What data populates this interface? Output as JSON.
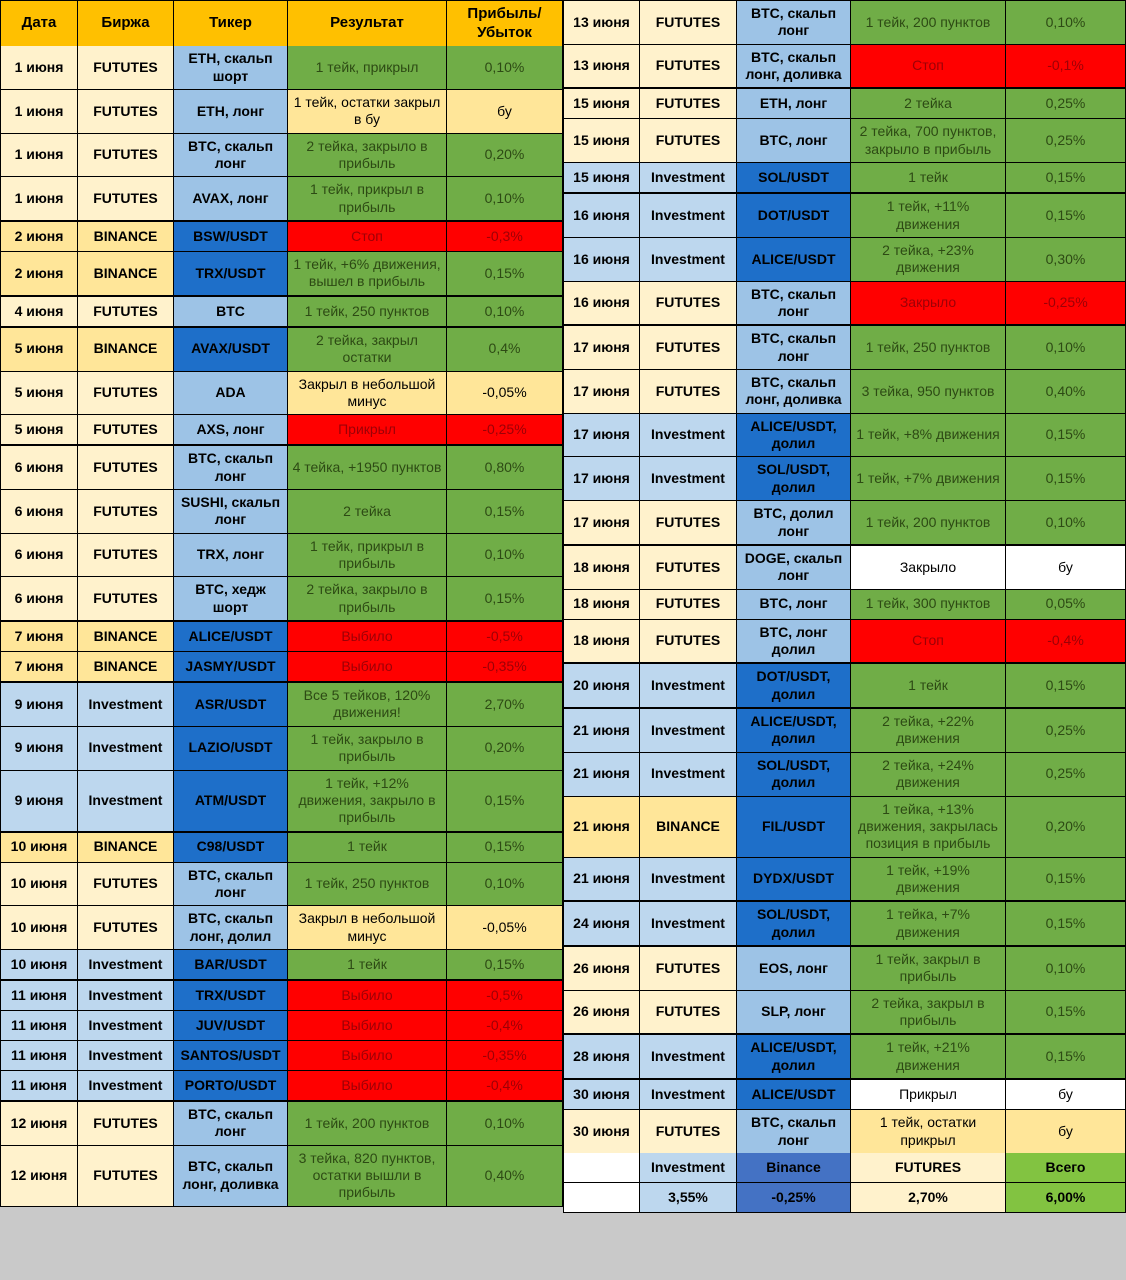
{
  "columns": [
    "Дата",
    "Биржа",
    "Тикер",
    "Результат",
    "Прибыль/ Убыток"
  ],
  "palette": {
    "header_orange": "#FFC000",
    "futures_row": "#FFF2CC",
    "binance_row": "#FFE699",
    "investment_row": "#BDD7EE",
    "ticker_light_blue": "#9DC3E6",
    "ticker_dark_blue": "#1E6FC9",
    "profit_green": "#70AD47",
    "loss_red": "#FF0000",
    "loss_text": "#9C0006",
    "breakeven_yellow": "#FFE699",
    "footer_blue": "#4472C4",
    "total_green": "#82C341"
  },
  "left_table": {
    "rows": [
      {
        "date": "1 июня",
        "exchange": "FUTUTES",
        "exchange_style": "futures",
        "ticker": "ETH, скальп шорт",
        "ticker_style": "light",
        "result": "1 тейк, прикрыл",
        "result_style": "green",
        "pl": "0,10%",
        "pl_style": "green"
      },
      {
        "date": "1 июня",
        "exchange": "FUTUTES",
        "exchange_style": "futures",
        "ticker": "ETH, лонг",
        "ticker_style": "light",
        "result": "1 тейк, остатки закрыл в бу",
        "result_style": "yellow",
        "pl": "бу",
        "pl_style": "yellow"
      },
      {
        "date": "1 июня",
        "exchange": "FUTUTES",
        "exchange_style": "futures",
        "ticker": "BTC, скальп лонг",
        "ticker_style": "light",
        "result": "2 тейка, закрыло в прибыль",
        "result_style": "green",
        "pl": "0,20%",
        "pl_style": "green"
      },
      {
        "date": "1 июня",
        "exchange": "FUTUTES",
        "exchange_style": "futures",
        "ticker": "AVAX, лонг",
        "ticker_style": "light",
        "result": "1 тейк, прикрыл в прибыль",
        "result_style": "green",
        "pl": "0,10%",
        "pl_style": "green"
      },
      {
        "date": "2 июня",
        "exchange": "BINANCE",
        "exchange_style": "binance",
        "ticker": "BSW/USDT",
        "ticker_style": "dark",
        "result": "Стоп",
        "result_style": "red",
        "pl": "-0,3%",
        "pl_style": "red"
      },
      {
        "date": "2 июня",
        "exchange": "BINANCE",
        "exchange_style": "binance",
        "ticker": "TRX/USDT",
        "ticker_style": "dark",
        "result": "1 тейк, +6% движения, вышел в прибыль",
        "result_style": "green",
        "pl": "0,15%",
        "pl_style": "green"
      },
      {
        "date": "4 июня",
        "exchange": "FUTUTES",
        "exchange_style": "futures",
        "ticker": "BTC",
        "ticker_style": "light",
        "result": "1 тейк, 250 пунктов",
        "result_style": "green",
        "pl": "0,10%",
        "pl_style": "green"
      },
      {
        "date": "5 июня",
        "exchange": "BINANCE",
        "exchange_style": "binance",
        "ticker": "AVAX/USDT",
        "ticker_style": "dark",
        "result": "2 тейка, закрыл остатки",
        "result_style": "green",
        "pl": "0,4%",
        "pl_style": "green"
      },
      {
        "date": "5 июня",
        "exchange": "FUTUTES",
        "exchange_style": "futures",
        "ticker": "ADA",
        "ticker_style": "light",
        "result": "Закрыл в небольшой минус",
        "result_style": "yellow",
        "pl": "-0,05%",
        "pl_style": "yellow"
      },
      {
        "date": "5 июня",
        "exchange": "FUTUTES",
        "exchange_style": "futures",
        "ticker": "AXS, лонг",
        "ticker_style": "light",
        "result": "Прикрыл",
        "result_style": "red",
        "pl": "-0,25%",
        "pl_style": "red"
      },
      {
        "date": "6 июня",
        "exchange": "FUTUTES",
        "exchange_style": "futures",
        "ticker": "BTC, скальп лонг",
        "ticker_style": "light",
        "result": "4 тейка, +1950 пунктов",
        "result_style": "green",
        "pl": "0,80%",
        "pl_style": "green"
      },
      {
        "date": "6 июня",
        "exchange": "FUTUTES",
        "exchange_style": "futures",
        "ticker": "SUSHI, скальп лонг",
        "ticker_style": "light",
        "result": "2 тейка",
        "result_style": "green",
        "pl": "0,15%",
        "pl_style": "green"
      },
      {
        "date": "6 июня",
        "exchange": "FUTUTES",
        "exchange_style": "futures",
        "ticker": "TRX, лонг",
        "ticker_style": "light",
        "result": "1 тейк, прикрыл в прибыль",
        "result_style": "green",
        "pl": "0,10%",
        "pl_style": "green"
      },
      {
        "date": "6 июня",
        "exchange": "FUTUTES",
        "exchange_style": "futures",
        "ticker": "BTC, хедж шорт",
        "ticker_style": "light",
        "result": "2 тейка, закрыло в прибыль",
        "result_style": "green",
        "pl": "0,15%",
        "pl_style": "green"
      },
      {
        "date": "7 июня",
        "exchange": "BINANCE",
        "exchange_style": "binance",
        "ticker": "ALICE/USDT",
        "ticker_style": "dark",
        "result": "Выбило",
        "result_style": "red",
        "pl": "-0,5%",
        "pl_style": "red"
      },
      {
        "date": "7 июня",
        "exchange": "BINANCE",
        "exchange_style": "binance",
        "ticker": "JASMY/USDT",
        "ticker_style": "dark",
        "result": "Выбило",
        "result_style": "red",
        "pl": "-0,35%",
        "pl_style": "red"
      },
      {
        "date": "9 июня",
        "exchange": "Investment",
        "exchange_style": "investment",
        "ticker": "ASR/USDT",
        "ticker_style": "dark",
        "result": "Все 5 тейков, 120% движения!",
        "result_style": "green",
        "pl": "2,70%",
        "pl_style": "green"
      },
      {
        "date": "9 июня",
        "exchange": "Investment",
        "exchange_style": "investment",
        "ticker": "LAZIO/USDT",
        "ticker_style": "dark",
        "result": "1 тейк, закрыло в прибыль",
        "result_style": "green",
        "pl": "0,20%",
        "pl_style": "green"
      },
      {
        "date": "9 июня",
        "exchange": "Investment",
        "exchange_style": "investment",
        "ticker": "ATM/USDT",
        "ticker_style": "dark",
        "result": "1 тейк, +12% движения, закрыло в прибыль",
        "result_style": "green",
        "pl": "0,15%",
        "pl_style": "green"
      },
      {
        "date": "10 июня",
        "exchange": "BINANCE",
        "exchange_style": "binance",
        "ticker": "C98/USDT",
        "ticker_style": "dark",
        "result": "1 тейк",
        "result_style": "green",
        "pl": "0,15%",
        "pl_style": "green"
      },
      {
        "date": "10 июня",
        "exchange": "FUTUTES",
        "exchange_style": "futures",
        "ticker": "BTC, скальп лонг",
        "ticker_style": "light",
        "result": "1 тейк, 250 пунктов",
        "result_style": "green",
        "pl": "0,10%",
        "pl_style": "green"
      },
      {
        "date": "10 июня",
        "exchange": "FUTUTES",
        "exchange_style": "futures",
        "ticker": "BTC, скальп лонг, долил",
        "ticker_style": "light",
        "result": "Закрыл в небольшой минус",
        "result_style": "yellow",
        "pl": "-0,05%",
        "pl_style": "yellow"
      },
      {
        "date": "10 июня",
        "exchange": "Investment",
        "exchange_style": "investment",
        "ticker": "BAR/USDT",
        "ticker_style": "dark",
        "result": "1 тейк",
        "result_style": "green",
        "pl": "0,15%",
        "pl_style": "green"
      },
      {
        "date": "11 июня",
        "exchange": "Investment",
        "exchange_style": "investment",
        "ticker": "TRX/USDT",
        "ticker_style": "dark",
        "result": "Выбило",
        "result_style": "red",
        "pl": "-0,5%",
        "pl_style": "red"
      },
      {
        "date": "11 июня",
        "exchange": "Investment",
        "exchange_style": "investment",
        "ticker": "JUV/USDT",
        "ticker_style": "dark",
        "result": "Выбило",
        "result_style": "red",
        "pl": "-0,4%",
        "pl_style": "red"
      },
      {
        "date": "11 июня",
        "exchange": "Investment",
        "exchange_style": "investment",
        "ticker": "SANTOS/USDT",
        "ticker_style": "dark",
        "result": "Выбило",
        "result_style": "red",
        "pl": "-0,35%",
        "pl_style": "red"
      },
      {
        "date": "11 июня",
        "exchange": "Investment",
        "exchange_style": "investment",
        "ticker": "PORTO/USDT",
        "ticker_style": "dark",
        "result": "Выбило",
        "result_style": "red",
        "pl": "-0,4%",
        "pl_style": "red"
      },
      {
        "date": "12 июня",
        "exchange": "FUTUTES",
        "exchange_style": "futures",
        "ticker": "BTC, скальп лонг",
        "ticker_style": "light",
        "result": "1 тейк, 200 пунктов",
        "result_style": "green",
        "pl": "0,10%",
        "pl_style": "green"
      },
      {
        "date": "12 июня",
        "exchange": "FUTUTES",
        "exchange_style": "futures",
        "ticker": "BTC, скальп лонг, доливка",
        "ticker_style": "light",
        "result": "3 тейка, 820 пунктов, остатки вышли в прибыль",
        "result_style": "green",
        "pl": "0,40%",
        "pl_style": "green"
      }
    ]
  },
  "right_table": {
    "rows": [
      {
        "date": "13 июня",
        "exchange": "FUTUTES",
        "exchange_style": "futures",
        "ticker": "BTC, скальп лонг",
        "ticker_style": "light",
        "result": "1 тейк, 200 пунктов",
        "result_style": "green",
        "pl": "0,10%",
        "pl_style": "green"
      },
      {
        "date": "13 июня",
        "exchange": "FUTUTES",
        "exchange_style": "futures",
        "ticker": "BTC, скальп лонг, доливка",
        "ticker_style": "light",
        "result": "Стоп",
        "result_style": "red",
        "pl": "-0,1%",
        "pl_style": "red"
      },
      {
        "date": "15 июня",
        "exchange": "FUTUTES",
        "exchange_style": "futures",
        "ticker": "ETH, лонг",
        "ticker_style": "light",
        "result": "2 тейка",
        "result_style": "green",
        "pl": "0,25%",
        "pl_style": "green"
      },
      {
        "date": "15 июня",
        "exchange": "FUTUTES",
        "exchange_style": "futures",
        "ticker": "BTC, лонг",
        "ticker_style": "light",
        "result": "2 тейка, 700 пунктов, закрыло в прибыль",
        "result_style": "green",
        "pl": "0,25%",
        "pl_style": "green"
      },
      {
        "date": "15 июня",
        "exchange": "Investment",
        "exchange_style": "investment",
        "ticker": "SOL/USDT",
        "ticker_style": "dark",
        "result": "1 тейк",
        "result_style": "green",
        "pl": "0,15%",
        "pl_style": "green"
      },
      {
        "date": "16 июня",
        "exchange": "Investment",
        "exchange_style": "investment",
        "ticker": "DOT/USDT",
        "ticker_style": "dark",
        "result": "1 тейк, +11% движения",
        "result_style": "green",
        "pl": "0,15%",
        "pl_style": "green"
      },
      {
        "date": "16 июня",
        "exchange": "Investment",
        "exchange_style": "investment",
        "ticker": "ALICE/USDT",
        "ticker_style": "dark",
        "result": "2 тейка, +23% движения",
        "result_style": "green",
        "pl": "0,30%",
        "pl_style": "green"
      },
      {
        "date": "16 июня",
        "exchange": "FUTUTES",
        "exchange_style": "futures",
        "ticker": "BTC, скальп лонг",
        "ticker_style": "light",
        "result": "Закрыло",
        "result_style": "red",
        "pl": "-0,25%",
        "pl_style": "red"
      },
      {
        "date": "17 июня",
        "exchange": "FUTUTES",
        "exchange_style": "futures",
        "ticker": "BTC, скальп лонг",
        "ticker_style": "light",
        "result": "1 тейк, 250 пунктов",
        "result_style": "green",
        "pl": "0,10%",
        "pl_style": "green"
      },
      {
        "date": "17 июня",
        "exchange": "FUTUTES",
        "exchange_style": "futures",
        "ticker": "BTC, скальп лонг, доливка",
        "ticker_style": "light",
        "result": "3 тейка, 950 пунктов",
        "result_style": "green",
        "pl": "0,40%",
        "pl_style": "green"
      },
      {
        "date": "17 июня",
        "exchange": "Investment",
        "exchange_style": "investment",
        "ticker": "ALICE/USDT, долил",
        "ticker_style": "dark",
        "result": "1 тейк, +8% движения",
        "result_style": "green",
        "pl": "0,15%",
        "pl_style": "green"
      },
      {
        "date": "17 июня",
        "exchange": "Investment",
        "exchange_style": "investment",
        "ticker": "SOL/USDT, долил",
        "ticker_style": "dark",
        "result": "1 тейк, +7% движения",
        "result_style": "green",
        "pl": "0,15%",
        "pl_style": "green"
      },
      {
        "date": "17 июня",
        "exchange": "FUTUTES",
        "exchange_style": "futures",
        "ticker": "BTC, долил лонг",
        "ticker_style": "light",
        "result": "1 тейк, 200 пунктов",
        "result_style": "green",
        "pl": "0,10%",
        "pl_style": "green"
      },
      {
        "date": "18 июня",
        "exchange": "FUTUTES",
        "exchange_style": "futures",
        "ticker": "DOGE, скальп лонг",
        "ticker_style": "light",
        "result": "Закрыло",
        "result_style": "white",
        "pl": "бу",
        "pl_style": "white"
      },
      {
        "date": "18 июня",
        "exchange": "FUTUTES",
        "exchange_style": "futures",
        "ticker": "BTC, лонг",
        "ticker_style": "light",
        "result": "1 тейк, 300 пунктов",
        "result_style": "green",
        "pl": "0,05%",
        "pl_style": "green"
      },
      {
        "date": "18 июня",
        "exchange": "FUTUTES",
        "exchange_style": "futures",
        "ticker": "BTC, лонг долил",
        "ticker_style": "light",
        "result": "Стоп",
        "result_style": "red",
        "pl": "-0,4%",
        "pl_style": "red"
      },
      {
        "date": "20 июня",
        "exchange": "Investment",
        "exchange_style": "investment",
        "ticker": "DOT/USDT, долил",
        "ticker_style": "dark",
        "result": "1 тейк",
        "result_style": "green",
        "pl": "0,15%",
        "pl_style": "green"
      },
      {
        "date": "21 июня",
        "exchange": "Investment",
        "exchange_style": "investment",
        "ticker": "ALICE/USDT, долил",
        "ticker_style": "dark",
        "result": "2 тейка, +22% движения",
        "result_style": "green",
        "pl": "0,25%",
        "pl_style": "green"
      },
      {
        "date": "21 июня",
        "exchange": "Investment",
        "exchange_style": "investment",
        "ticker": "SOL/USDT, долил",
        "ticker_style": "dark",
        "result": "2 тейка, +24% движения",
        "result_style": "green",
        "pl": "0,25%",
        "pl_style": "green"
      },
      {
        "date": "21 июня",
        "exchange": "BINANCE",
        "exchange_style": "binance",
        "ticker": "FIL/USDT",
        "ticker_style": "dark",
        "result": "1 тейка, +13% движения, закрылась позиция в прибыль",
        "result_style": "green",
        "pl": "0,20%",
        "pl_style": "green"
      },
      {
        "date": "21 июня",
        "exchange": "Investment",
        "exchange_style": "investment",
        "ticker": "DYDX/USDT",
        "ticker_style": "dark",
        "result": "1 тейк, +19% движения",
        "result_style": "green",
        "pl": "0,15%",
        "pl_style": "green"
      },
      {
        "date": "24 июня",
        "exchange": "Investment",
        "exchange_style": "investment",
        "ticker": "SOL/USDT, долил",
        "ticker_style": "dark",
        "result": "1 тейка, +7% движения",
        "result_style": "green",
        "pl": "0,15%",
        "pl_style": "green"
      },
      {
        "date": "26 июня",
        "exchange": "FUTUTES",
        "exchange_style": "futures",
        "ticker": "EOS, лонг",
        "ticker_style": "light",
        "result": "1 тейк, закрыл в прибыль",
        "result_style": "green",
        "pl": "0,10%",
        "pl_style": "green"
      },
      {
        "date": "26 июня",
        "exchange": "FUTUTES",
        "exchange_style": "futures",
        "ticker": "SLP, лонг",
        "ticker_style": "light",
        "result": "2 тейка, закрыл в прибыль",
        "result_style": "green",
        "pl": "0,15%",
        "pl_style": "green"
      },
      {
        "date": "28 июня",
        "exchange": "Investment",
        "exchange_style": "investment",
        "ticker": "ALICE/USDT, долил",
        "ticker_style": "dark",
        "result": "1 тейк, +21% движения",
        "result_style": "green",
        "pl": "0,15%",
        "pl_style": "green"
      },
      {
        "date": "30 июня",
        "exchange": "Investment",
        "exchange_style": "investment",
        "ticker": "ALICE/USDT",
        "ticker_style": "dark",
        "result": "Прикрыл",
        "result_style": "white",
        "pl": "бу",
        "pl_style": "white"
      },
      {
        "date": "30 июня",
        "exchange": "FUTUTES",
        "exchange_style": "futures",
        "ticker": "BTC, скальп лонг",
        "ticker_style": "light",
        "result": "1 тейк, остатки прикрыл",
        "result_style": "yellow",
        "pl": "бу",
        "pl_style": "yellow"
      }
    ]
  },
  "footer": {
    "labels": [
      "",
      "Investment",
      "Binance",
      "FUTURES",
      "Всего"
    ],
    "values": [
      "",
      "3,55%",
      "-0,25%",
      "2,70%",
      "6,00%"
    ]
  }
}
